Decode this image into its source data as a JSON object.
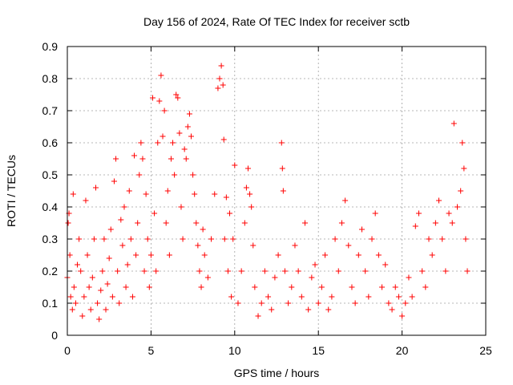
{
  "chart_data": {
    "type": "scatter",
    "title": "Day 156 of 2024, Rate Of TEC Index for receiver sctb",
    "xlabel": "GPS time / hours",
    "ylabel": "ROTI / TECUs",
    "xlim": [
      0,
      25
    ],
    "ylim": [
      0,
      0.9
    ],
    "xticks": [
      0,
      5,
      10,
      15,
      20,
      25
    ],
    "xtick_labels": [
      "0",
      "5",
      "10",
      "15",
      "20",
      "25"
    ],
    "yticks": [
      0,
      0.1,
      0.2,
      0.3,
      0.4,
      0.5,
      0.6,
      0.7,
      0.8,
      0.9
    ],
    "ytick_labels": [
      "0",
      "0.1",
      "0.2",
      "0.3",
      "0.4",
      "0.5",
      "0.6",
      "0.7",
      "0.8",
      "0.9"
    ],
    "grid": true,
    "marker": "+",
    "color": "#ff0000",
    "series": [
      {
        "name": "ROTI",
        "points": [
          [
            0.0,
            0.18
          ],
          [
            0.05,
            0.35
          ],
          [
            0.1,
            0.38
          ],
          [
            0.15,
            0.25
          ],
          [
            0.2,
            0.12
          ],
          [
            0.3,
            0.08
          ],
          [
            0.35,
            0.44
          ],
          [
            0.4,
            0.15
          ],
          [
            0.5,
            0.1
          ],
          [
            0.6,
            0.22
          ],
          [
            0.7,
            0.3
          ],
          [
            0.8,
            0.2
          ],
          [
            0.9,
            0.06
          ],
          [
            1.0,
            0.12
          ],
          [
            1.1,
            0.42
          ],
          [
            1.2,
            0.25
          ],
          [
            1.3,
            0.15
          ],
          [
            1.4,
            0.08
          ],
          [
            1.5,
            0.18
          ],
          [
            1.6,
            0.3
          ],
          [
            1.7,
            0.46
          ],
          [
            1.8,
            0.1
          ],
          [
            1.9,
            0.05
          ],
          [
            2.0,
            0.14
          ],
          [
            2.1,
            0.2
          ],
          [
            2.2,
            0.3
          ],
          [
            2.3,
            0.08
          ],
          [
            2.4,
            0.16
          ],
          [
            2.5,
            0.24
          ],
          [
            2.6,
            0.33
          ],
          [
            2.7,
            0.12
          ],
          [
            2.8,
            0.48
          ],
          [
            2.9,
            0.55
          ],
          [
            3.0,
            0.2
          ],
          [
            3.1,
            0.1
          ],
          [
            3.2,
            0.36
          ],
          [
            3.3,
            0.28
          ],
          [
            3.4,
            0.4
          ],
          [
            3.5,
            0.15
          ],
          [
            3.6,
            0.22
          ],
          [
            3.7,
            0.45
          ],
          [
            3.8,
            0.3
          ],
          [
            3.9,
            0.12
          ],
          [
            4.0,
            0.56
          ],
          [
            4.1,
            0.25
          ],
          [
            4.2,
            0.35
          ],
          [
            4.3,
            0.5
          ],
          [
            4.4,
            0.6
          ],
          [
            4.5,
            0.55
          ],
          [
            4.6,
            0.2
          ],
          [
            4.7,
            0.44
          ],
          [
            4.8,
            0.3
          ],
          [
            4.9,
            0.15
          ],
          [
            5.0,
            0.25
          ],
          [
            5.1,
            0.74
          ],
          [
            5.2,
            0.38
          ],
          [
            5.3,
            0.2
          ],
          [
            5.4,
            0.6
          ],
          [
            5.5,
            0.73
          ],
          [
            5.6,
            0.81
          ],
          [
            5.7,
            0.62
          ],
          [
            5.8,
            0.7
          ],
          [
            5.9,
            0.35
          ],
          [
            6.0,
            0.45
          ],
          [
            6.1,
            0.25
          ],
          [
            6.2,
            0.55
          ],
          [
            6.3,
            0.6
          ],
          [
            6.4,
            0.5
          ],
          [
            6.5,
            0.75
          ],
          [
            6.6,
            0.74
          ],
          [
            6.7,
            0.63
          ],
          [
            6.8,
            0.4
          ],
          [
            6.9,
            0.3
          ],
          [
            7.0,
            0.58
          ],
          [
            7.1,
            0.55
          ],
          [
            7.2,
            0.65
          ],
          [
            7.3,
            0.69
          ],
          [
            7.4,
            0.62
          ],
          [
            7.5,
            0.5
          ],
          [
            7.6,
            0.44
          ],
          [
            7.7,
            0.35
          ],
          [
            7.8,
            0.28
          ],
          [
            7.9,
            0.2
          ],
          [
            8.0,
            0.15
          ],
          [
            8.1,
            0.33
          ],
          [
            8.2,
            0.25
          ],
          [
            8.4,
            0.18
          ],
          [
            8.6,
            0.3
          ],
          [
            8.8,
            0.44
          ],
          [
            9.0,
            0.77
          ],
          [
            9.1,
            0.8
          ],
          [
            9.2,
            0.84
          ],
          [
            9.3,
            0.78
          ],
          [
            9.35,
            0.61
          ],
          [
            9.4,
            0.3
          ],
          [
            9.5,
            0.43
          ],
          [
            9.6,
            0.2
          ],
          [
            9.7,
            0.38
          ],
          [
            9.8,
            0.12
          ],
          [
            9.9,
            0.3
          ],
          [
            10.0,
            0.53
          ],
          [
            10.2,
            0.1
          ],
          [
            10.4,
            0.2
          ],
          [
            10.6,
            0.35
          ],
          [
            10.7,
            0.46
          ],
          [
            10.8,
            0.52
          ],
          [
            10.9,
            0.44
          ],
          [
            11.0,
            0.4
          ],
          [
            11.1,
            0.28
          ],
          [
            11.2,
            0.15
          ],
          [
            11.4,
            0.06
          ],
          [
            11.6,
            0.1
          ],
          [
            11.8,
            0.2
          ],
          [
            12.0,
            0.12
          ],
          [
            12.2,
            0.08
          ],
          [
            12.4,
            0.18
          ],
          [
            12.6,
            0.25
          ],
          [
            12.8,
            0.6
          ],
          [
            12.85,
            0.52
          ],
          [
            12.9,
            0.45
          ],
          [
            13.0,
            0.2
          ],
          [
            13.2,
            0.1
          ],
          [
            13.4,
            0.15
          ],
          [
            13.6,
            0.28
          ],
          [
            13.8,
            0.2
          ],
          [
            14.0,
            0.12
          ],
          [
            14.2,
            0.35
          ],
          [
            14.4,
            0.08
          ],
          [
            14.6,
            0.18
          ],
          [
            14.8,
            0.22
          ],
          [
            15.0,
            0.1
          ],
          [
            15.2,
            0.15
          ],
          [
            15.4,
            0.25
          ],
          [
            15.6,
            0.08
          ],
          [
            15.8,
            0.12
          ],
          [
            16.0,
            0.3
          ],
          [
            16.2,
            0.2
          ],
          [
            16.4,
            0.35
          ],
          [
            16.6,
            0.42
          ],
          [
            16.8,
            0.28
          ],
          [
            17.0,
            0.15
          ],
          [
            17.2,
            0.1
          ],
          [
            17.4,
            0.25
          ],
          [
            17.6,
            0.33
          ],
          [
            17.8,
            0.2
          ],
          [
            18.0,
            0.12
          ],
          [
            18.2,
            0.3
          ],
          [
            18.4,
            0.38
          ],
          [
            18.6,
            0.25
          ],
          [
            18.8,
            0.15
          ],
          [
            19.0,
            0.22
          ],
          [
            19.2,
            0.1
          ],
          [
            19.4,
            0.08
          ],
          [
            19.6,
            0.15
          ],
          [
            19.8,
            0.12
          ],
          [
            20.0,
            0.06
          ],
          [
            20.2,
            0.1
          ],
          [
            20.4,
            0.18
          ],
          [
            20.6,
            0.12
          ],
          [
            20.8,
            0.34
          ],
          [
            21.0,
            0.38
          ],
          [
            21.2,
            0.2
          ],
          [
            21.4,
            0.15
          ],
          [
            21.6,
            0.3
          ],
          [
            21.8,
            0.25
          ],
          [
            22.0,
            0.35
          ],
          [
            22.2,
            0.42
          ],
          [
            22.4,
            0.3
          ],
          [
            22.6,
            0.2
          ],
          [
            22.8,
            0.38
          ],
          [
            23.0,
            0.35
          ],
          [
            23.1,
            0.66
          ],
          [
            23.3,
            0.4
          ],
          [
            23.5,
            0.45
          ],
          [
            23.6,
            0.6
          ],
          [
            23.7,
            0.52
          ],
          [
            23.8,
            0.3
          ],
          [
            23.9,
            0.2
          ]
        ]
      }
    ]
  }
}
